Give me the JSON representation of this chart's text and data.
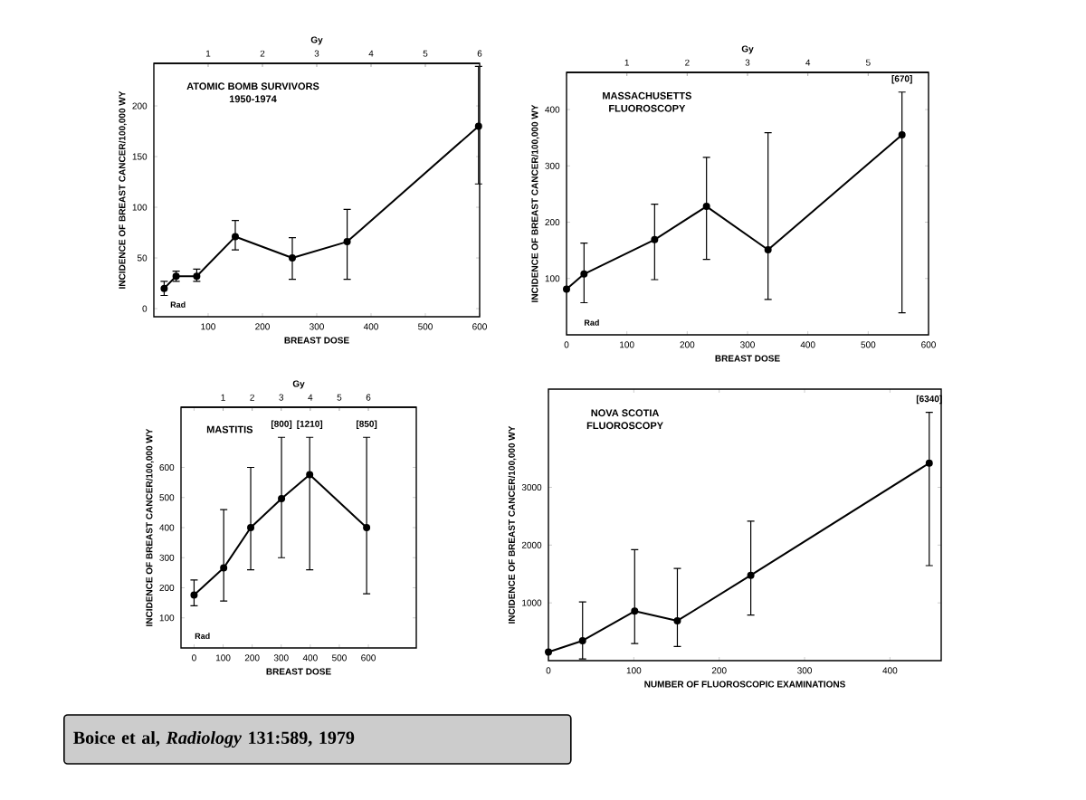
{
  "chart_data": [
    {
      "type": "line",
      "title": "ATOMIC BOMB SURVIVORS",
      "subtitle": "1950-1974",
      "xlabel": "BREAST DOSE",
      "ylabel": "INCIDENCE OF BREAST CANCER/100,000 WY",
      "x2label": "Gy",
      "marker": "circle",
      "x": [
        19,
        41,
        79,
        150,
        255,
        356,
        598
      ],
      "series": [
        {
          "color": "#000000",
          "values": [
            20,
            32,
            32,
            71,
            50,
            66,
            180
          ],
          "errors": [
            [
              13,
              27
            ],
            [
              27,
              37
            ],
            [
              27,
              39
            ],
            [
              58,
              87
            ],
            [
              29,
              70
            ],
            [
              29,
              98
            ],
            [
              123,
              239
            ]
          ]
        }
      ],
      "xlim": [
        0,
        600
      ],
      "ylim": [
        -8,
        242
      ],
      "xticks": [
        100,
        200,
        300,
        400,
        500,
        600
      ],
      "yticks": [
        0,
        50,
        100,
        150,
        200
      ],
      "x2lim": [
        0,
        6
      ],
      "x2ticks": [
        1,
        2,
        3,
        4,
        5,
        6
      ],
      "annotations": [
        "Rad"
      ]
    },
    {
      "type": "line",
      "title": "MASSACHUSETTS",
      "subtitle": "FLUOROSCOPY",
      "xlabel": "BREAST DOSE",
      "ylabel": "INCIDENCE OF BREAST CANCER/100,000 WY",
      "x2label": "Gy",
      "marker": "circle",
      "x": [
        0,
        29,
        146,
        232,
        334,
        556
      ],
      "series": [
        {
          "color": "#000000",
          "values": [
            81,
            108,
            169,
            228,
            151,
            355
          ],
          "errors": [
            null,
            [
              57,
              163
            ],
            [
              98,
              232
            ],
            [
              134,
              315
            ],
            [
              63,
              359
            ],
            [
              39,
              431
            ]
          ]
        }
      ],
      "xlim": [
        0,
        600
      ],
      "ylim": [
        0,
        466
      ],
      "xticks": [
        0,
        100,
        200,
        300,
        400,
        500,
        600
      ],
      "yticks": [
        100,
        200,
        300,
        400
      ],
      "x2lim": [
        0,
        6
      ],
      "x2ticks": [
        1,
        2,
        3,
        4,
        5
      ],
      "annotations": [
        "Rad",
        {
          "text": "[670]",
          "x": 556,
          "y": 431
        }
      ]
    },
    {
      "type": "line",
      "title": "MASTITIS",
      "xlabel": "BREAST DOSE",
      "ylabel": "INCIDENCE OF BREAST CANCER/100,000 WY",
      "x2label": "Gy",
      "marker": "circle",
      "x": [
        0,
        102,
        195,
        301,
        398,
        594
      ],
      "series": [
        {
          "color": "#000000",
          "values": [
            176,
            266,
            400,
            496,
            576,
            400
          ],
          "errors": [
            [
              140,
              226
            ],
            [
              156,
              460
            ],
            [
              260,
              600
            ],
            [
              300,
              700
            ],
            [
              260,
              700
            ],
            [
              180,
              700
            ]
          ]
        }
      ],
      "xlim": [
        -45,
        765
      ],
      "ylim": [
        0,
        800
      ],
      "xticks": [
        0,
        100,
        200,
        300,
        400,
        500,
        600
      ],
      "yticks": [
        100,
        200,
        300,
        400,
        500,
        600
      ],
      "x2lim": [
        -0.45,
        7.65
      ],
      "x2ticks": [
        1,
        2,
        3,
        4,
        5,
        6
      ],
      "annotations": [
        "Rad",
        "Boice et al, *Radiology* 131:589, 1979",
        {
          "text": "[800]",
          "x": 301,
          "y": 700
        },
        {
          "text": "[1210]",
          "x": 398,
          "y": 700
        },
        {
          "text": "[850]",
          "x": 594,
          "y": 700
        }
      ]
    },
    {
      "type": "line",
      "title": "NOVA SCOTIA",
      "subtitle": "FLUOROSCOPY",
      "xlabel": "NUMBER OF FLUOROSCOPIC EXAMINATIONS",
      "ylabel": "INCIDENCE OF BREAST CANCER/100,000 WY",
      "marker": "circle",
      "x": [
        0,
        40,
        101,
        151,
        237,
        446
      ],
      "series": [
        {
          "color": "#000000",
          "values": [
            148,
            345,
            857,
            690,
            1478,
            3419
          ],
          "errors": [
            null,
            [
              30,
              1015
            ],
            [
              296,
              1921
            ],
            [
              246,
              1596
            ],
            [
              788,
              2414
            ],
            [
              1645,
              4300
            ]
          ]
        }
      ],
      "xlim": [
        0,
        460
      ],
      "ylim": [
        0,
        4700
      ],
      "xticks": [
        0,
        100,
        200,
        300,
        400
      ],
      "yticks": [
        1000,
        2000,
        3000
      ],
      "annotations": [
        {
          "text": "[6340]",
          "x": 446,
          "y": 4300
        }
      ]
    }
  ]
}
